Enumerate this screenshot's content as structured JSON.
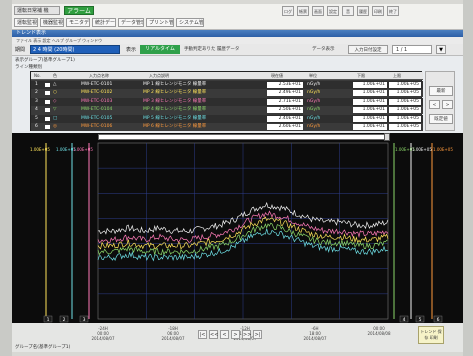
{
  "menubar": {
    "system_label": "運転日常補 機",
    "alarm_label": "アラーム",
    "tabs": [
      "運転監視",
      "機器監視",
      "モニタデータ",
      "統計データ",
      "データ管理",
      "プリント管理",
      "システム管理"
    ],
    "tool_icons": [
      "ログ",
      "帳票",
      "画面",
      "設定",
      "音",
      "履歴",
      "印刷",
      "終了"
    ]
  },
  "window": {
    "title": "トレンド表示",
    "menu": "ファイル  表示  設定  ヘルプ  グループ  ウィンドウ"
  },
  "toolbar": {
    "period_label": "期間",
    "period_value": "2 4 時間  (20時間)",
    "display_label": "表示",
    "realtime_label": "リアルタイム",
    "history_label": "手動判定ありた  履歴データ",
    "datashow_label": "データ表示",
    "input_label": "入力日付設定",
    "page_value": "1   /   1",
    "page_down": "▼"
  },
  "group_label": "表示グループ(基準グループ1)",
  "graph_label": "ライン種類別",
  "table": {
    "headers": [
      "No.",
      "色",
      "入力点名称",
      "入力点説明",
      "現在値",
      "単位",
      "下限",
      "上限"
    ],
    "rows": [
      {
        "no": "1",
        "mark": "△",
        "tag": "MW-ETC-0101",
        "desc": "MP 1  線ヒレンジモニタ 線量率",
        "value": "2.53E+01",
        "unit": "nGy/h",
        "low": "1.00E+01",
        "high": "1.00E+05",
        "color": "#f4f4f4"
      },
      {
        "no": "2",
        "mark": "○",
        "tag": "MW-ETC-0102",
        "desc": "MP 2  線ヒレンジモニタ 線量率",
        "value": "2.49E+01",
        "unit": "nGy/h",
        "low": "1.00E+01",
        "high": "1.00E+05",
        "color": "#ffe45a"
      },
      {
        "no": "3",
        "mark": "◇",
        "tag": "MW-ETC-0103",
        "desc": "MP 3  線ヒレンジモニタ 線量率",
        "value": "2.71E+01",
        "unit": "nGy/h",
        "low": "1.00E+01",
        "high": "1.00E+05",
        "color": "#ff7ab8"
      },
      {
        "no": "4",
        "mark": "▽",
        "tag": "MW-ETC-0104",
        "desc": "MP 4  線ヒレンジモニタ 線量率",
        "value": "2.50E+01",
        "unit": "nGy/h",
        "low": "1.00E+01",
        "high": "1.00E+05",
        "color": "#8cd86a"
      },
      {
        "no": "5",
        "mark": "□",
        "tag": "MW-ETC-0105",
        "desc": "MP 5  線ヒレンジモニタ 線量率",
        "value": "2.40E+01",
        "unit": "nGy/h",
        "low": "1.00E+01",
        "high": "1.00E+05",
        "color": "#6fe0e6"
      },
      {
        "no": "6",
        "mark": "◎",
        "tag": "MW-ETC-0106",
        "desc": "MP 6  線ヒレンジモニタ 線量率",
        "value": "2.60E+01",
        "unit": "nGy/h",
        "low": "1.00E+01",
        "high": "1.00E+05",
        "color": "#ff9a3c"
      }
    ]
  },
  "side_panel": {
    "refresh": "最新",
    "left": "<",
    "right": ">",
    "reset": "既定値"
  },
  "axes": {
    "left_top": [
      "1.00E+05",
      "1.00E+05",
      "1.00E+05"
    ],
    "right_top": [
      "1.00E+05",
      "1.00E+05",
      "1.00E+05"
    ],
    "bottom_tags": [
      "1",
      "2",
      "3",
      "4",
      "5",
      "6"
    ]
  },
  "time_axis": {
    "labels": [
      {
        "time": "-24H\n00:00\n2014/08/07"
      },
      {
        "time": "-18H\n06:00\n2014/08/07"
      },
      {
        "time": "-12H\n12:00\n2014/08/07"
      },
      {
        "time": "-6H\n18:00\n2014/08/07"
      },
      {
        "time": "00:00\n2014/08/08"
      }
    ],
    "nav": [
      "|<",
      "<<",
      "<",
      ">",
      ">>",
      ">|"
    ]
  },
  "bottom": {
    "status": "グループ名(基準グループ1)",
    "yellow_button": "トレンド 保存 印刷"
  },
  "chart_data": {
    "type": "line",
    "series": [
      {
        "color": "#f4f4f4",
        "values": [
          30,
          30,
          31,
          30,
          31,
          30,
          30,
          31,
          32,
          34,
          37,
          39,
          38,
          36,
          34,
          33,
          33,
          32,
          32,
          33
        ]
      },
      {
        "color": "#ff7ab8",
        "values": [
          27,
          27,
          28,
          27,
          28,
          27,
          27,
          28,
          29,
          31,
          34,
          36,
          35,
          33,
          31,
          30,
          30,
          29,
          29,
          30
        ]
      },
      {
        "color": "#ffe45a",
        "values": [
          25,
          25,
          26,
          25,
          25,
          25,
          25,
          26,
          27,
          29,
          32,
          34,
          33,
          31,
          29,
          28,
          28,
          27,
          27,
          28
        ]
      },
      {
        "color": "#8cd86a",
        "values": [
          23,
          23,
          24,
          23,
          23,
          23,
          23,
          24,
          25,
          27,
          30,
          32,
          31,
          29,
          27,
          26,
          26,
          25,
          25,
          26
        ]
      },
      {
        "color": "#6fe0e6",
        "values": [
          21,
          21,
          22,
          21,
          21,
          21,
          21,
          22,
          23,
          25,
          28,
          30,
          29,
          27,
          25,
          24,
          24,
          23,
          23,
          24
        ]
      }
    ],
    "ylim": [
      0,
      60
    ],
    "grid": true
  }
}
